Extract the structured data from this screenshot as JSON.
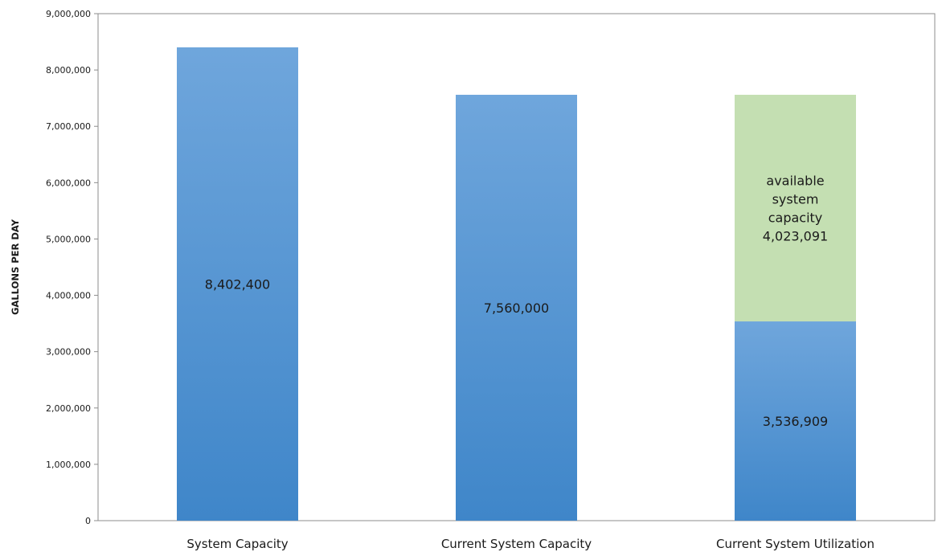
{
  "chart_data": {
    "type": "bar",
    "stacked": true,
    "ylabel": "GALLONS PER DAY",
    "xlabel": "",
    "ylim": [
      0,
      9000000
    ],
    "ytick_step": 1000000,
    "yticks": [
      "0",
      "1,000,000",
      "2,000,000",
      "3,000,000",
      "4,000,000",
      "5,000,000",
      "6,000,000",
      "7,000,000",
      "8,000,000",
      "9,000,000"
    ],
    "grid": false,
    "legend": "none",
    "categories": [
      "System Capacity",
      "Current System Capacity",
      "Current System Utilization"
    ],
    "series": [
      {
        "values": [
          8402400,
          7560000,
          3536909
        ],
        "labels": [
          "8,402,400",
          "7,560,000",
          "3,536,909"
        ],
        "color_top": "#6fa6dc",
        "color_bottom": "#3f86c9"
      },
      {
        "values": [
          0,
          0,
          4023091
        ],
        "labels": [
          "",
          "",
          "available system capacity 4,023,091"
        ],
        "color": "#c4dfb2"
      }
    ]
  }
}
